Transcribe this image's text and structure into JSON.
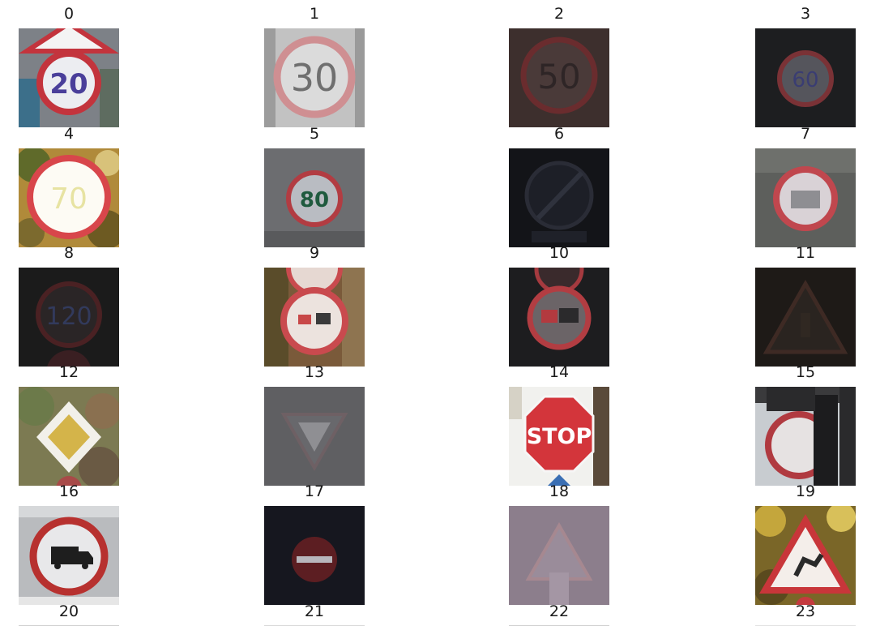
{
  "figure": {
    "labels": [
      "0",
      "1",
      "2",
      "3",
      "4",
      "5",
      "6",
      "7",
      "8",
      "9",
      "10",
      "11",
      "12",
      "13",
      "14",
      "15",
      "16",
      "17",
      "18",
      "19",
      "20",
      "21",
      "22",
      "23"
    ],
    "sign_texts": {
      "0": "20",
      "1": "30",
      "2": "50",
      "3": "60",
      "5": "80",
      "8": "120",
      "14": "STOP"
    }
  }
}
